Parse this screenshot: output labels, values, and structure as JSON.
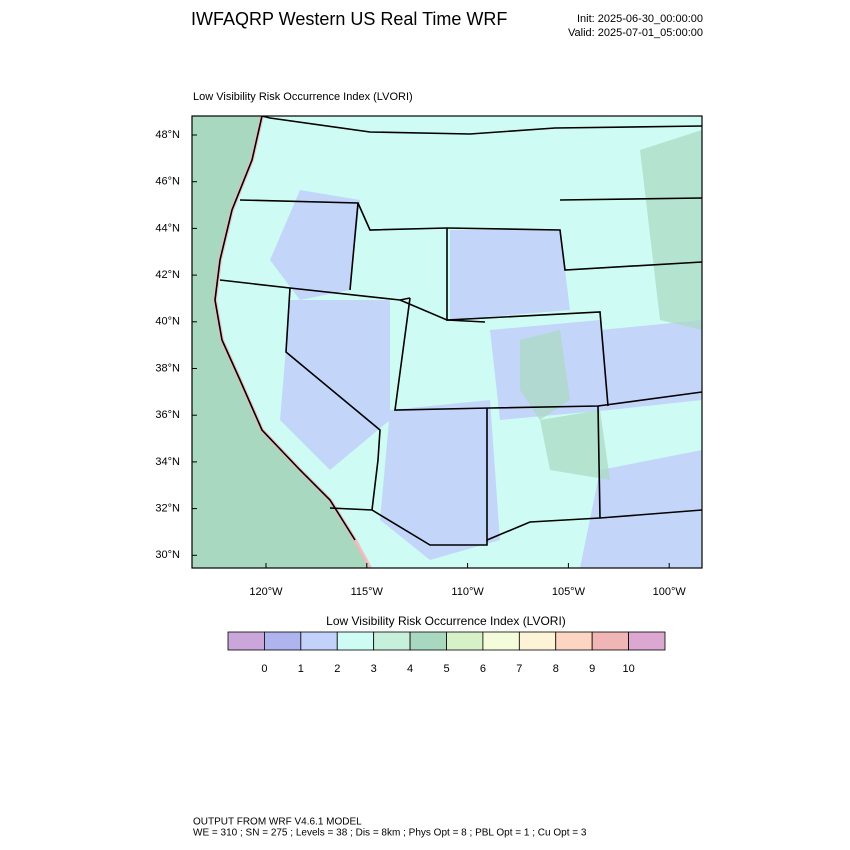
{
  "header": {
    "title": "IWFAQRP Western US Real Time WRF",
    "init": "Init: 2025-06-30_00:00:00",
    "valid": "Valid: 2025-07-01_05:00:00"
  },
  "map": {
    "title": "Low Visibility Risk Occurrence Index   (LVORI)",
    "lat_labels": [
      "48°N",
      "46°N",
      "44°N",
      "42°N",
      "40°N",
      "38°N",
      "36°N",
      "34°N",
      "32°N",
      "30°N"
    ],
    "lon_labels": [
      "120°W",
      "115°W",
      "110°W",
      "105°W",
      "100°W"
    ]
  },
  "colorbar": {
    "title": "Low Visibility Risk Occurrence Index  (LVORI)",
    "labels": [
      0,
      1,
      2,
      3,
      4,
      5,
      6,
      7,
      8,
      9,
      10
    ],
    "colors": [
      "#caa6da",
      "#b0b4ee",
      "#c2d2fa",
      "#cefcf4",
      "#c6f0dc",
      "#a9d8c1",
      "#d6f0c8",
      "#f5fcdc",
      "#fdf3d6",
      "#fcd6c2",
      "#f0b6b6",
      "#dca8d2"
    ]
  },
  "footer": {
    "line1": "OUTPUT FROM WRF V4.6.1 MODEL",
    "line2": "WE = 310 ; SN = 275 ; Levels = 38 ; Dis = 8km ; Phys Opt = 8 ; PBL Opt = 1 ; Cu Opt = 3"
  }
}
